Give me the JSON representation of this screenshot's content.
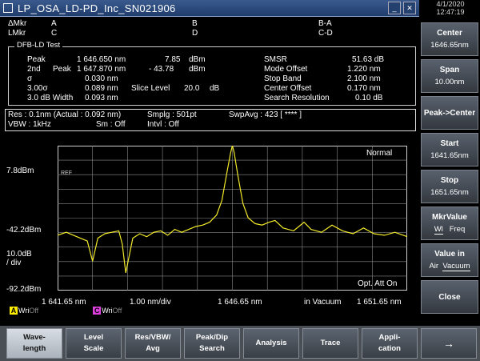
{
  "title": "LP_OSA_LD-PD_Inc_SN021906",
  "clock": {
    "date": "4/1/2020",
    "time": "12:47:19"
  },
  "markers": {
    "amkr_label": "ΔMkr",
    "lmkr_label": "LMkr",
    "a": "A",
    "b": "B",
    "c": "C",
    "d": "D",
    "ba": "B-A",
    "cd": "C-D"
  },
  "dfb": {
    "title": "DFB-LD Test",
    "peak_label": "Peak",
    "peak_wl": "1 646.650 nm",
    "peak_pwr": "7.85",
    "peak_unit": "dBm",
    "second_label": "2nd",
    "second_sub": "Peak",
    "second_wl": "1 647.870 nm",
    "second_pwr": "- 43.78",
    "second_unit": "dBm",
    "sigma_label": "σ",
    "sigma_val": "0.030 nm",
    "three_sigma_label": "3.00σ",
    "three_sigma_val": "0.089 nm",
    "slice_label": "Slice Level",
    "slice_val": "20.0",
    "slice_unit": "dB",
    "width_label": "3.0   dB Width",
    "width_val": "0.093 nm",
    "smsr_label": "SMSR",
    "smsr_val": "51.63 dB",
    "mode_offset_label": "Mode Offset",
    "mode_offset_val": "1.220 nm",
    "stop_band_label": "Stop Band",
    "stop_band_val": "2.100 nm",
    "center_offset_label": "Center Offset",
    "center_offset_val": "0.170 nm",
    "search_res_label": "Search Resolution",
    "search_res_val": "0.10  dB"
  },
  "settings": {
    "res": "Res :  0.1nm  (Actual : 0.092 nm)",
    "smplg": "Smplg :   501pt",
    "swpavg": "SwpAvg :  423 [   ****  ]",
    "vbw": "VBW :    1kHz",
    "sm": "Sm :    Off",
    "intvl": "Intvl :   Off"
  },
  "plot": {
    "ref_level": "7.8dBm",
    "mid_level": "-42.2dBm",
    "scale": "10.0dB",
    "scale_unit": "/ div",
    "bottom_level": "-92.2dBm",
    "x_start": "1 641.65 nm",
    "x_div": "1.00 nm/div",
    "x_center": "1 646.65 nm",
    "x_medium": "in Vacuum",
    "x_stop": "1 651.65 nm",
    "mode": "Normal",
    "opt_att": "Opt. Att On",
    "ref_mark": "REF",
    "trace_a": {
      "letter": "A",
      "state": "Wri",
      "view": "Off",
      "color": "#ffee00"
    },
    "trace_c": {
      "letter": "C",
      "state": "Wri",
      "view": "Off",
      "color": "#e040e0"
    },
    "trace_color": "#f2ea2a",
    "grid_color": "#8a8a8a"
  },
  "chart_data": {
    "type": "line",
    "x_unit": "nm",
    "y_unit": "dBm",
    "xlim": [
      1641.65,
      1651.65
    ],
    "ylim": [
      -92.2,
      7.8
    ],
    "series": [
      {
        "x": [
          1641.65,
          1641.9,
          1642.2,
          1642.5,
          1642.65,
          1642.8,
          1643.0,
          1643.2,
          1643.4,
          1643.5,
          1643.6,
          1643.8,
          1644.0,
          1644.2,
          1644.4,
          1644.6,
          1644.8,
          1645.0,
          1645.2,
          1645.4,
          1645.6,
          1645.8,
          1646.0,
          1646.2,
          1646.35,
          1646.5,
          1646.6,
          1646.65,
          1646.7,
          1646.8,
          1646.95,
          1647.1,
          1647.3,
          1647.5,
          1647.7,
          1647.87,
          1648.1,
          1648.4,
          1648.7,
          1648.9,
          1649.2,
          1649.5,
          1649.8,
          1650.1,
          1650.4,
          1650.7,
          1651.0,
          1651.3,
          1651.65
        ],
        "y": [
          -54,
          -52,
          -55,
          -58,
          -72,
          -56,
          -53,
          -52,
          -51,
          -60,
          -80,
          -56,
          -53,
          -55,
          -52,
          -51,
          -54,
          -50,
          -52,
          -50,
          -48,
          -47,
          -45,
          -40,
          -30,
          -10,
          3,
          7.85,
          3,
          -12,
          -32,
          -42,
          -46,
          -47,
          -45,
          -43.78,
          -49,
          -51,
          -45,
          -50,
          -52,
          -47,
          -51,
          -53,
          -49,
          -53,
          -54,
          -52,
          -55
        ]
      }
    ]
  },
  "softkeys": [
    {
      "l1": "Center",
      "l2": "1646.65nm"
    },
    {
      "l1": "Span",
      "l2": "10.00nm"
    },
    {
      "l1": "Peak->Center",
      "l2": ""
    },
    {
      "l1": "Start",
      "l2": "1641.65nm"
    },
    {
      "l1": "Stop",
      "l2": "1651.65nm"
    },
    {
      "l1": "MkrValue",
      "l2a": "Wl",
      "l2b": "Freq"
    },
    {
      "l1": "Value in",
      "l2a": "Air",
      "l2b": "Vacuum"
    },
    {
      "l1": "Close",
      "l2": ""
    }
  ],
  "tabs": [
    {
      "l1": "Wave-",
      "l2": "length"
    },
    {
      "l1": "Level",
      "l2": "Scale"
    },
    {
      "l1": "Res/VBW/",
      "l2": "Avg"
    },
    {
      "l1": "Peak/Dip",
      "l2": "Search"
    },
    {
      "l1": "Analysis",
      "l2": ""
    },
    {
      "l1": "Trace",
      "l2": ""
    },
    {
      "l1": "Appli-",
      "l2": "cation"
    },
    {
      "l1": "→",
      "l2": ""
    }
  ]
}
